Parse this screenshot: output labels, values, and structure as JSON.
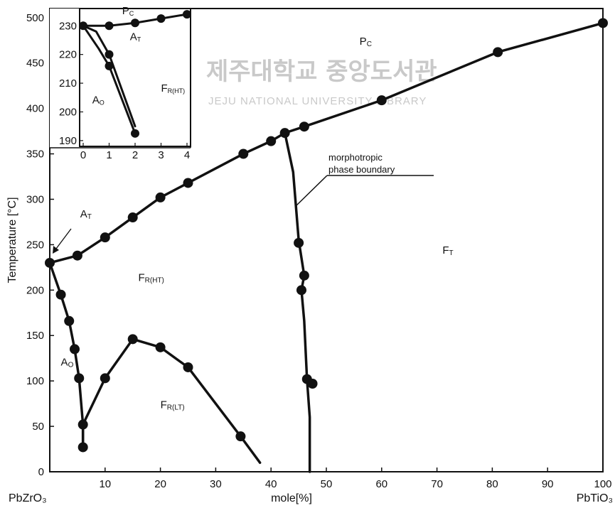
{
  "chart_data": {
    "type": "line",
    "xlabel": "mole[%]",
    "ylabel": "Temperature [°C]",
    "xlim": [
      0,
      100
    ],
    "ylim": [
      0,
      510
    ],
    "xticks": [
      10,
      20,
      30,
      40,
      50,
      60,
      70,
      80,
      90,
      100
    ],
    "yticks": [
      0,
      50,
      100,
      150,
      200,
      250,
      300,
      350,
      400,
      450,
      500
    ],
    "x_end_labels": {
      "left": "PbZrO₃",
      "right": "PbTiO₃"
    },
    "grid": false,
    "series": [
      {
        "id": "pc-boundary",
        "points": [
          [
            0,
            230
          ],
          [
            5,
            238
          ],
          [
            10,
            258
          ],
          [
            15,
            280
          ],
          [
            20,
            302
          ],
          [
            25,
            318
          ],
          [
            35,
            350
          ],
          [
            40,
            364
          ],
          [
            42.5,
            373
          ],
          [
            46,
            380
          ],
          [
            60,
            409
          ],
          [
            81,
            462
          ],
          [
            100,
            494
          ]
        ]
      },
      {
        "id": "ao-fr-boundary",
        "points": [
          [
            0,
            230
          ],
          [
            2,
            195
          ],
          [
            3.5,
            166
          ],
          [
            4.5,
            135
          ],
          [
            5.3,
            103
          ],
          [
            6,
            52
          ],
          [
            6,
            27
          ]
        ]
      },
      {
        "id": "fr-ht-lt-boundary",
        "points": [
          [
            6,
            27
          ],
          [
            6,
            52
          ],
          [
            10,
            103
          ],
          [
            15,
            146
          ],
          [
            20,
            137
          ],
          [
            25,
            115
          ],
          [
            34.5,
            39
          ],
          [
            38,
            10
          ]
        ]
      },
      {
        "id": "morphotropic-boundary",
        "points": [
          [
            42.5,
            373
          ],
          [
            44,
            330
          ],
          [
            45,
            255
          ],
          [
            46,
            216
          ],
          [
            45.5,
            200
          ],
          [
            46,
            166
          ],
          [
            46.5,
            102
          ],
          [
            47,
            60
          ],
          [
            47,
            0
          ]
        ]
      }
    ],
    "markers": [
      [
        0,
        230
      ],
      [
        5,
        238
      ],
      [
        10,
        258
      ],
      [
        15,
        280
      ],
      [
        20,
        302
      ],
      [
        25,
        318
      ],
      [
        35,
        350
      ],
      [
        40,
        364
      ],
      [
        42.5,
        373
      ],
      [
        46,
        380
      ],
      [
        60,
        409
      ],
      [
        81,
        462
      ],
      [
        100,
        494
      ],
      [
        2,
        195
      ],
      [
        3.5,
        166
      ],
      [
        4.5,
        135
      ],
      [
        5.3,
        103
      ],
      [
        6,
        52
      ],
      [
        6,
        27
      ],
      [
        10,
        103
      ],
      [
        15,
        146
      ],
      [
        20,
        137
      ],
      [
        25,
        115
      ],
      [
        34.5,
        39
      ],
      [
        45,
        252
      ],
      [
        46,
        216
      ],
      [
        45.5,
        200
      ],
      [
        46.5,
        102
      ],
      [
        47.5,
        97
      ]
    ],
    "phase_labels": [
      {
        "main": "P",
        "sub": "C",
        "x": 56,
        "y": 470
      },
      {
        "main": "F",
        "sub": "T",
        "x": 71,
        "y": 240
      },
      {
        "main": "F",
        "sub": "R(HT)",
        "x": 16,
        "y": 210
      },
      {
        "main": "F",
        "sub": "R(LT)",
        "x": 20,
        "y": 70
      },
      {
        "main": "A",
        "sub": "O",
        "x": 2,
        "y": 117
      },
      {
        "main": "A",
        "sub": "T",
        "x": 5.5,
        "y": 280
      }
    ],
    "annotation": {
      "text_line1": "morphotropic",
      "text_line2": "phase boundary"
    },
    "inset": {
      "xlim": [
        0,
        4
      ],
      "ylim": [
        188,
        236
      ],
      "xticks": [
        0,
        1,
        2,
        3,
        4
      ],
      "yticks": [
        190,
        200,
        210,
        220,
        230
      ],
      "series": [
        {
          "id": "inset-pc",
          "points": [
            [
              0,
              230
            ],
            [
              1,
              230
            ],
            [
              2,
              231
            ],
            [
              3,
              232.5
            ],
            [
              4,
              234
            ]
          ]
        },
        {
          "id": "inset-ao-at",
          "points": [
            [
              0,
              230
            ],
            [
              0.5,
              228
            ],
            [
              1,
              220
            ],
            [
              2,
              195
            ]
          ]
        },
        {
          "id": "inset-ao-fr",
          "points": [
            [
              0,
              230
            ],
            [
              0.6,
              222
            ],
            [
              1,
              216
            ],
            [
              2,
              192.5
            ]
          ]
        }
      ],
      "markers": [
        [
          0,
          230
        ],
        [
          1,
          230
        ],
        [
          2,
          231
        ],
        [
          3,
          232.5
        ],
        [
          4,
          234
        ],
        [
          1,
          220
        ],
        [
          1,
          216
        ],
        [
          2,
          192.5
        ]
      ],
      "phase_labels": [
        {
          "main": "P",
          "sub": "C",
          "x": 1.5,
          "y": 234
        },
        {
          "main": "A",
          "sub": "T",
          "x": 1.8,
          "y": 225
        },
        {
          "main": "A",
          "sub": "O",
          "x": 0.35,
          "y": 203
        },
        {
          "main": "F",
          "sub": "R(HT)",
          "x": 3,
          "y": 207
        }
      ]
    }
  },
  "watermark": {
    "line1": "제주대학교 중앙도서관",
    "line2": "JEJU NATIONAL UNIVERSITY LIBRARY"
  }
}
